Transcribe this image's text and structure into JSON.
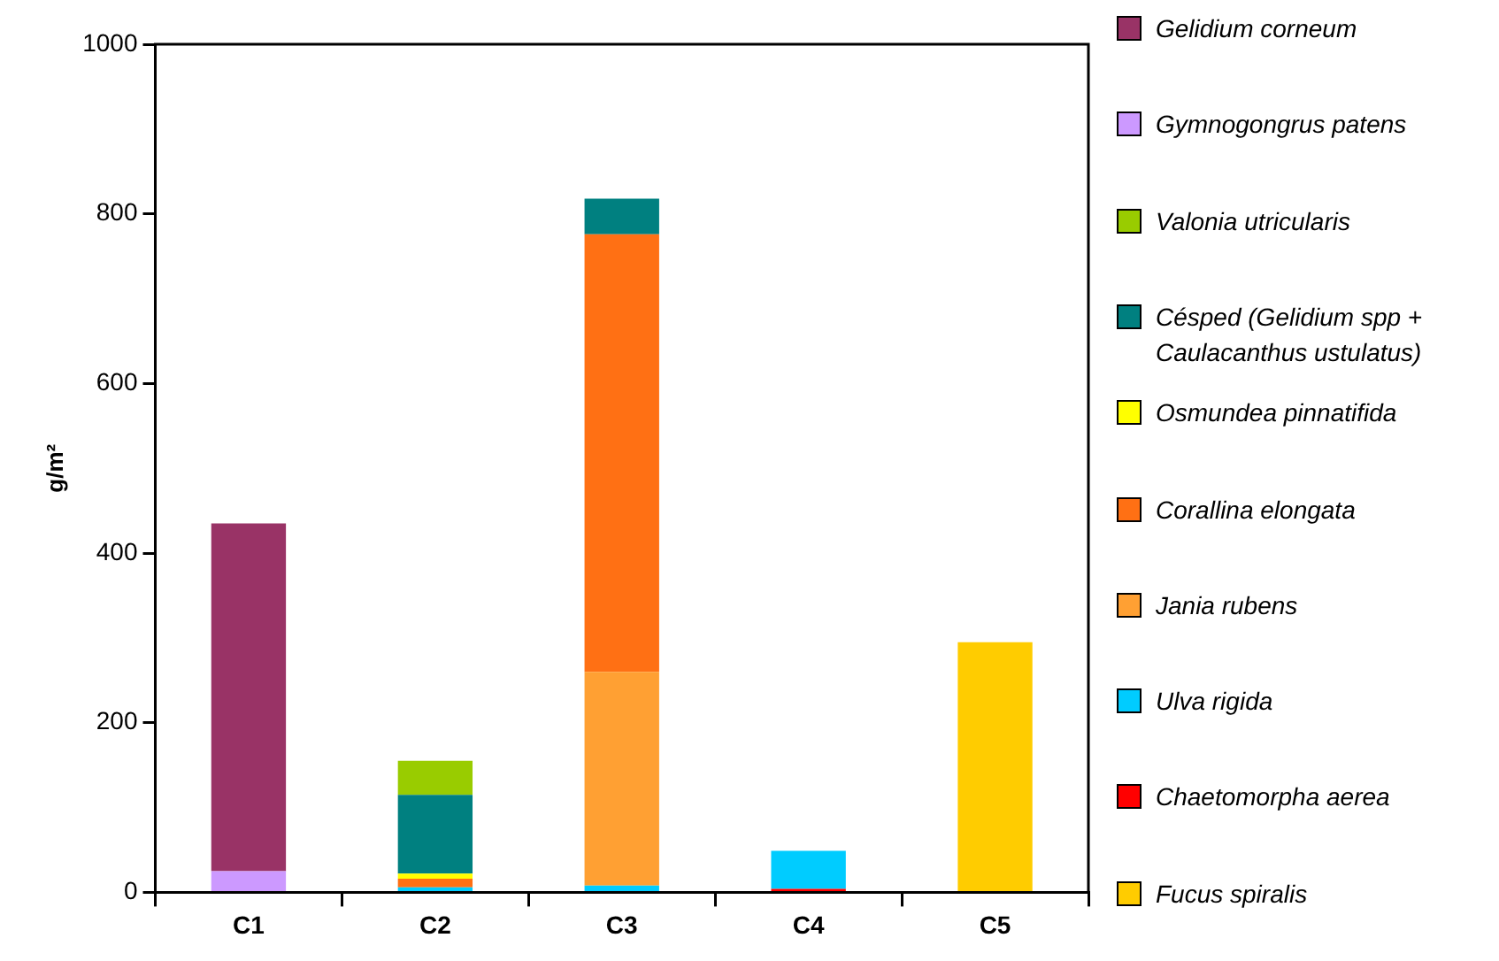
{
  "chart_data": {
    "type": "bar",
    "stacked": true,
    "ylabel": "g/m²",
    "categories": [
      "C1",
      "C2",
      "C3",
      "C4",
      "C5"
    ],
    "ylim": [
      0,
      1000
    ],
    "yticks": [
      0,
      200,
      400,
      600,
      800,
      1000
    ],
    "grid": false,
    "legend": "right",
    "series": [
      {
        "name": "Fucus spiralis",
        "color": "#ffcc00",
        "values": [
          null,
          null,
          null,
          null,
          295
        ]
      },
      {
        "name": "Chaetomorpha aerea",
        "color": "#ff0000",
        "values": [
          null,
          null,
          null,
          4,
          null
        ]
      },
      {
        "name": "Ulva rigida",
        "color": "#00ccff",
        "values": [
          null,
          6,
          8,
          45,
          null
        ]
      },
      {
        "name": "Jania rubens",
        "color": "#ffa033",
        "values": [
          null,
          null,
          252,
          null,
          null
        ]
      },
      {
        "name": "Corallina elongata",
        "color": "#ff7014",
        "values": [
          null,
          10,
          516,
          null,
          null
        ]
      },
      {
        "name": "Osmundea pinnatifida",
        "color": "#ffff00",
        "values": [
          null,
          6,
          null,
          null,
          null
        ]
      },
      {
        "name": "Césped (Gelidium spp + Caulacanthus ustulatus)",
        "color": "#008080",
        "values": [
          null,
          93,
          42,
          null,
          null
        ]
      },
      {
        "name": "Valonia utricularis",
        "color": "#99cc00",
        "values": [
          null,
          40,
          null,
          null,
          null
        ]
      },
      {
        "name": "Gymnogongrus patens",
        "color": "#cc99ff",
        "values": [
          25,
          null,
          null,
          null,
          null
        ]
      },
      {
        "name": "Gelidium corneum",
        "color": "#993366",
        "values": [
          410,
          null,
          null,
          null,
          null
        ]
      }
    ]
  }
}
